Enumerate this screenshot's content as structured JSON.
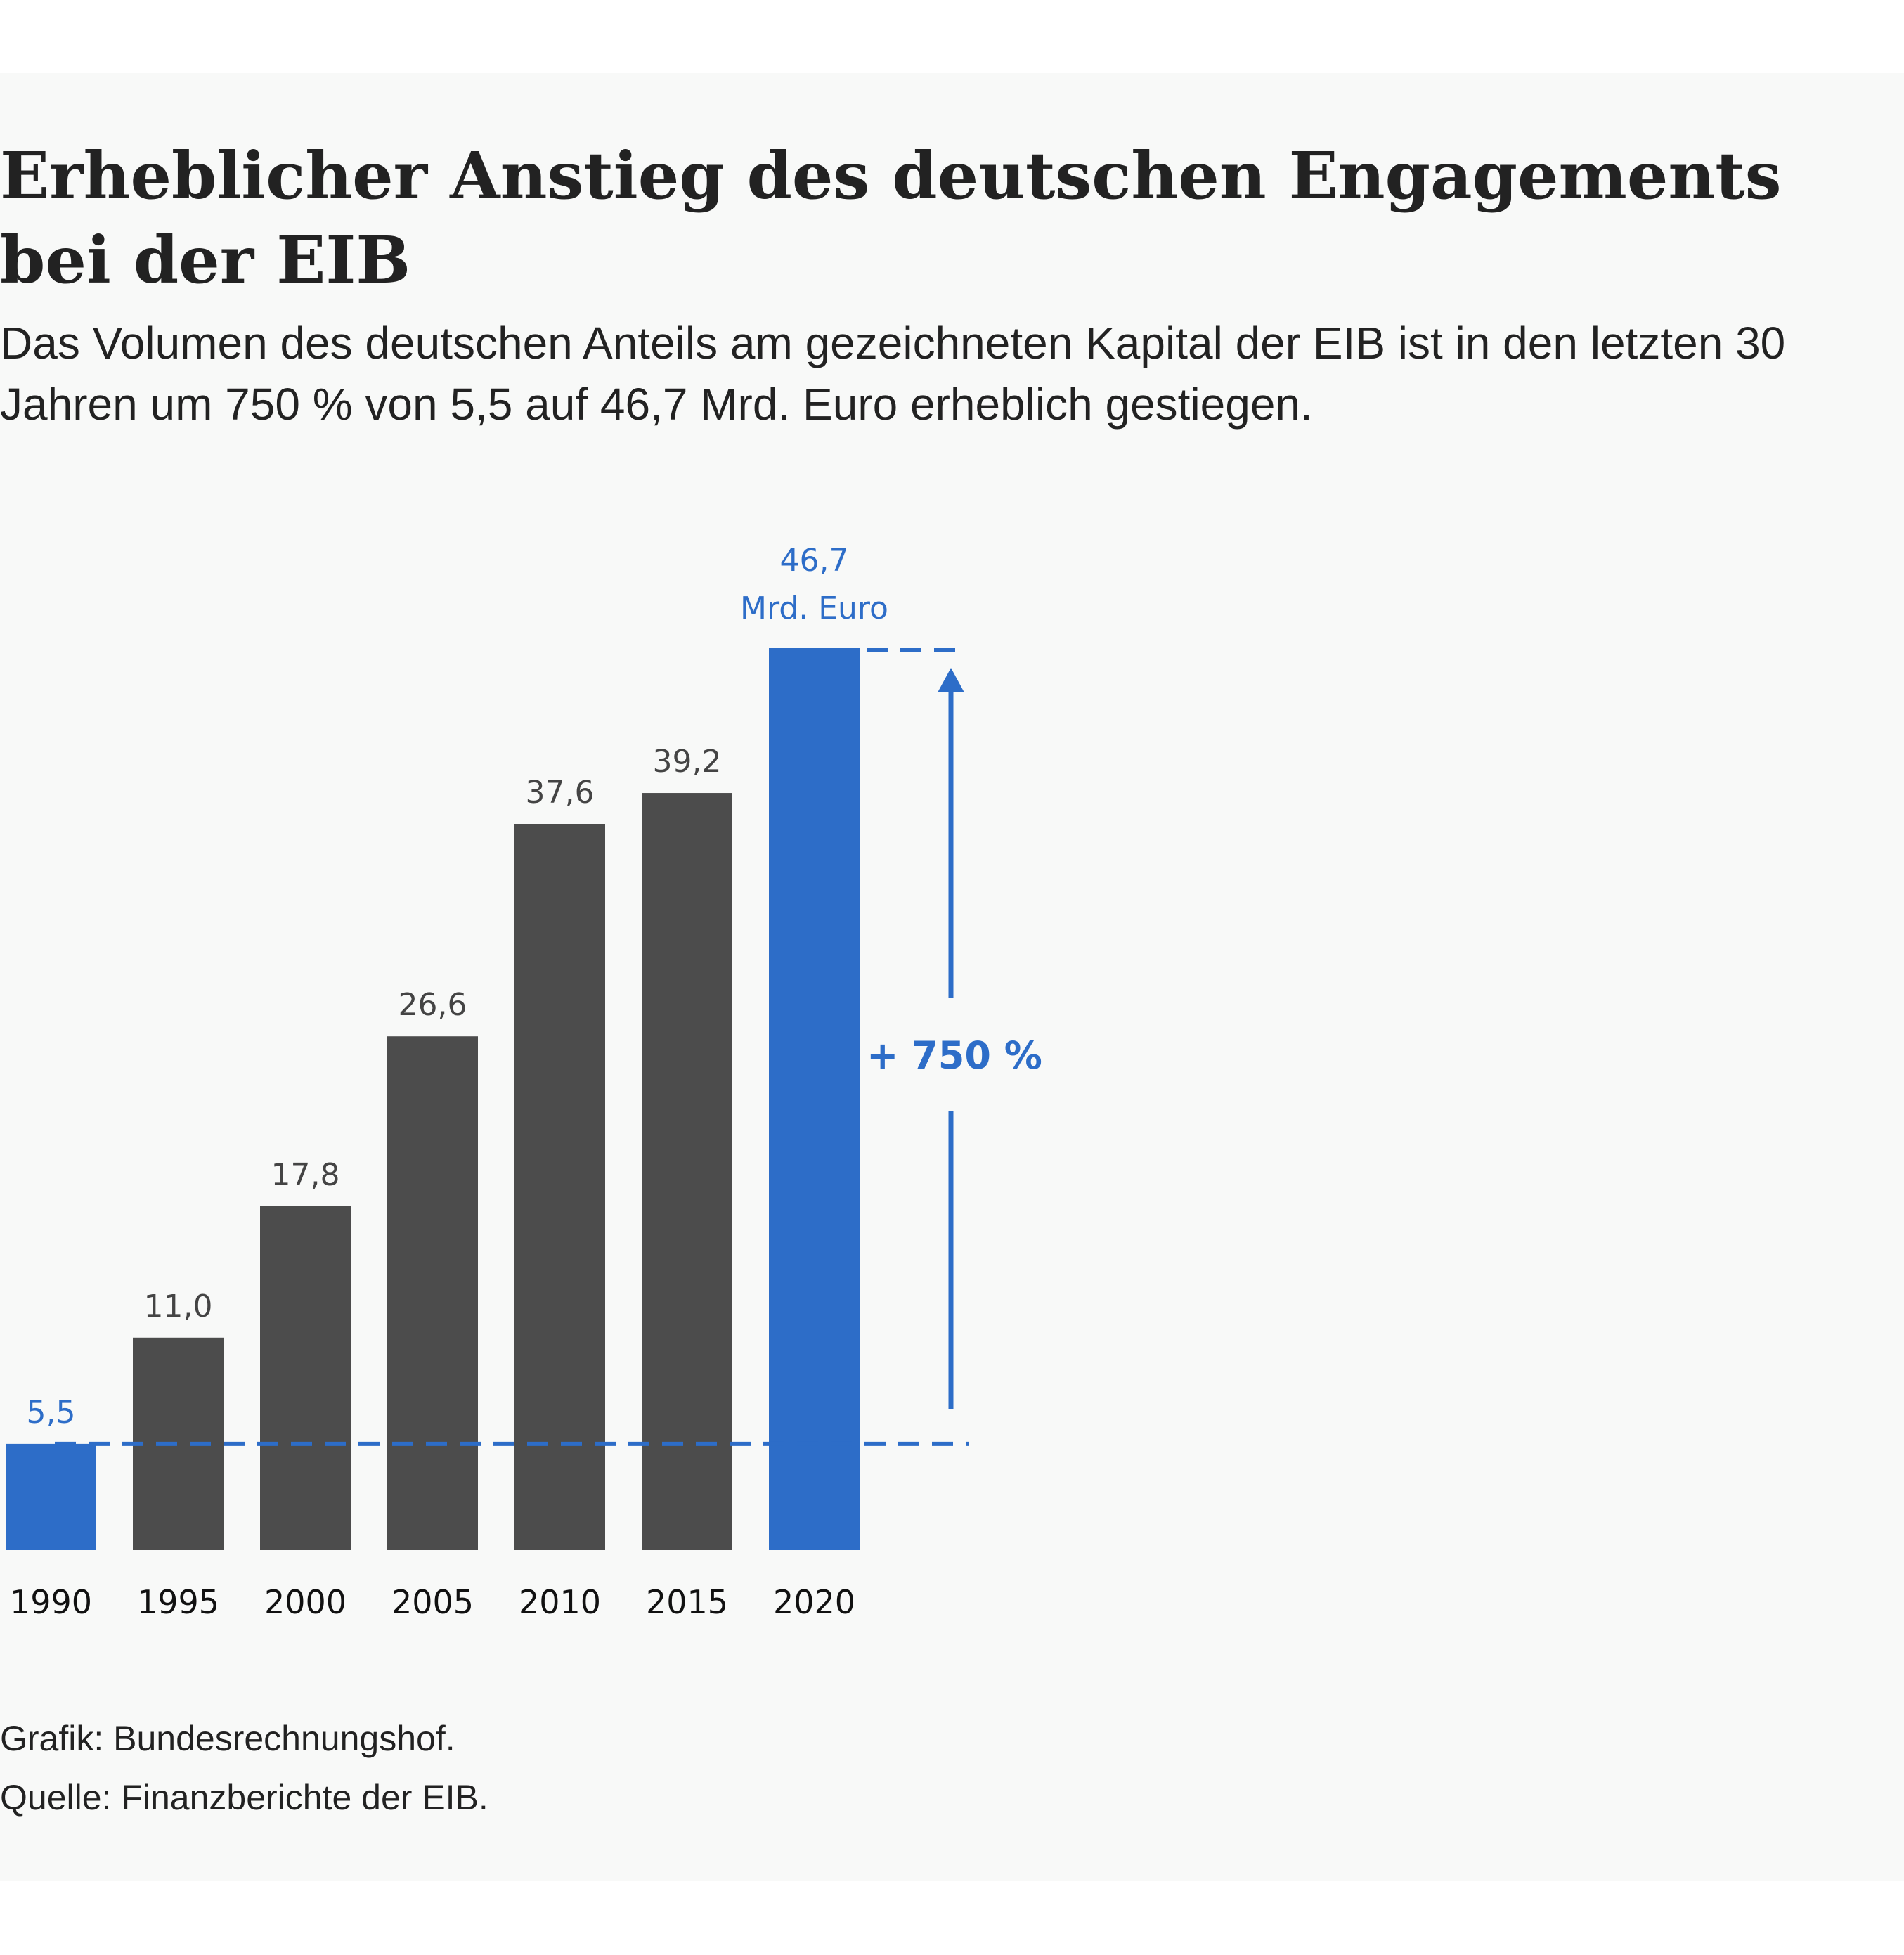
{
  "colors": {
    "background": "#f8f9f8",
    "bar": "#4c4c4c",
    "highlight": "#2d6dc8",
    "text": "#222222",
    "label": "#444444"
  },
  "chart_data": {
    "type": "bar",
    "title": "Erheblicher Anstieg des deutschen Engagements bei der EIB",
    "subtitle": "Das Volumen des deutschen Anteils am gezeichneten Kapital der EIB ist in den letzten 30 Jahren um 750 % von 5,5 auf 46,7 Mrd. Euro erheblich gestiegen.",
    "xlabel": "",
    "ylabel": "",
    "unit": "Mrd. Euro",
    "ylim": [
      0,
      46.7
    ],
    "grid": false,
    "categories": [
      "1990",
      "1995",
      "2000",
      "2005",
      "2010",
      "2015",
      "2020"
    ],
    "values": [
      5.5,
      11.0,
      17.8,
      26.6,
      37.6,
      39.2,
      46.7
    ],
    "value_labels": [
      "5,5",
      "11,0",
      "17,8",
      "26,6",
      "37,6",
      "39,2",
      "46,7"
    ],
    "highlighted": [
      "1990",
      "2020"
    ],
    "annotation": "+ 750 %",
    "credits": {
      "graphic": "Grafik: Bundesrechnungshof.",
      "source": "Quelle: Finanzberichte der EIB."
    }
  }
}
